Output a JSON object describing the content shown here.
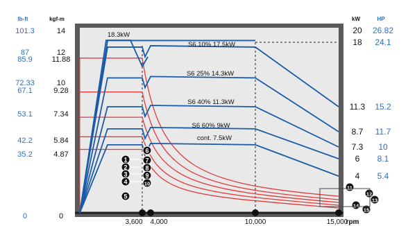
{
  "chart_data": {
    "type": "line",
    "title": "",
    "xlabel": "rpm",
    "x_ticks": [
      3600,
      4000,
      10000,
      15000
    ],
    "x_tick_labels": [
      "3,600",
      "4,000",
      "10,000",
      "15,000"
    ],
    "xlim": [
      0,
      15000
    ],
    "left_axes": [
      {
        "unit": "lb-ft",
        "labels": [
          "101.3",
          "87",
          "85.9",
          "72.33",
          "67.1",
          "53.1",
          "42.2",
          "35.2",
          "0"
        ]
      },
      {
        "unit": "kgf-m",
        "values": [
          14,
          12,
          11.88,
          10,
          9.28,
          7.34,
          5.84,
          4.87,
          0
        ],
        "labels": [
          "14",
          "12",
          "11.88",
          "10",
          "9.28",
          "7.34",
          "5.84",
          "4.87",
          "0"
        ]
      }
    ],
    "right_axes": [
      {
        "unit": "kW",
        "values": [
          20,
          18,
          11.3,
          8.7,
          7.3,
          6,
          4
        ],
        "labels": [
          "20",
          "18",
          "11.3",
          "8.7",
          "7.3",
          "6",
          "4"
        ]
      },
      {
        "unit": "HP",
        "labels": [
          "26.82",
          "24.1",
          "15.2",
          "11.7",
          "10",
          "8.1",
          "5.4"
        ]
      }
    ],
    "power_series": [
      {
        "name": "18.3kW",
        "points": [
          [
            0,
            0
          ],
          [
            3600,
            18.3
          ],
          [
            4000,
            18.3
          ],
          [
            10000,
            18.3
          ]
        ]
      },
      {
        "name": "S6  10% 17.5kW",
        "points": [
          [
            0,
            0
          ],
          [
            3600,
            17.5
          ],
          [
            4000,
            17.5
          ],
          [
            10000,
            17.5
          ],
          [
            15000,
            11.3
          ]
        ]
      },
      {
        "name": "S6  25% 14.3kW",
        "points": [
          [
            0,
            0
          ],
          [
            3600,
            14.3
          ],
          [
            4000,
            14.3
          ],
          [
            10000,
            14.3
          ],
          [
            15000,
            8.7
          ]
        ]
      },
      {
        "name": "S6  40% 11.3kW",
        "points": [
          [
            0,
            0
          ],
          [
            3600,
            11.3
          ],
          [
            4000,
            11.3
          ],
          [
            10000,
            11.3
          ],
          [
            15000,
            7.3
          ]
        ]
      },
      {
        "name": "S6  60% 9kW",
        "points": [
          [
            0,
            0
          ],
          [
            3600,
            9
          ],
          [
            4000,
            9
          ],
          [
            10000,
            9
          ],
          [
            15000,
            6
          ]
        ]
      },
      {
        "name": "cont. 7.5kW",
        "points": [
          [
            0,
            0
          ],
          [
            3600,
            7.5
          ],
          [
            4000,
            7.5
          ],
          [
            10000,
            7.5
          ],
          [
            15000,
            4
          ]
        ]
      }
    ],
    "torque_series": [
      {
        "kgf_m": 11.88
      },
      {
        "kgf_m": 9.28
      },
      {
        "kgf_m": 7.34
      },
      {
        "kgf_m": 5.84
      },
      {
        "kgf_m": 4.87
      }
    ],
    "markers": [
      "1",
      "2",
      "3",
      "4",
      "5",
      "6",
      "7",
      "8",
      "9",
      "10",
      "11",
      "12",
      "13",
      "14",
      "15"
    ],
    "dashed_reference_rpm": [
      3600,
      10000
    ],
    "grid": false,
    "colors": {
      "power": "#1a5aa8",
      "torque": "#e23a3a",
      "frame": "#333333",
      "plot_bg": "#e9e9e9",
      "outer_bg": "#5a5a5a",
      "imperial_text": "#2e6fbf"
    }
  }
}
